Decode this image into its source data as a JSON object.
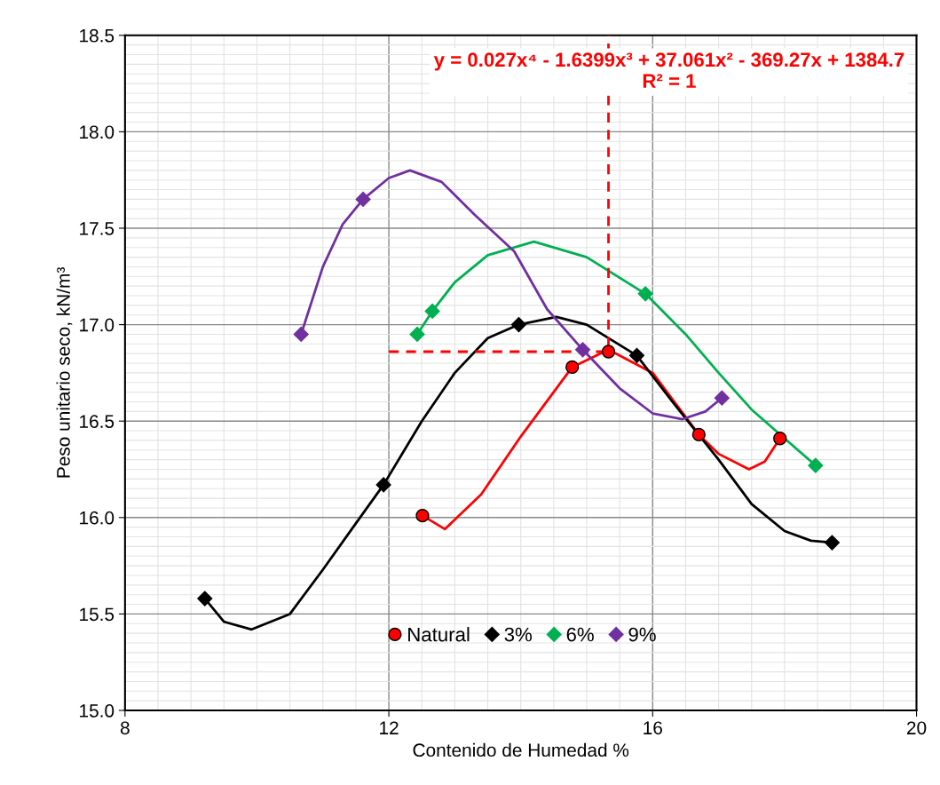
{
  "chart_data": {
    "type": "scatter",
    "xlabel": "Contenido de Humedad %",
    "ylabel": "Peso unitario seco, kN/m³",
    "xlim": [
      8,
      20
    ],
    "xticks": [
      8,
      12,
      16,
      20
    ],
    "ylim": [
      15.0,
      18.5
    ],
    "yticks": [
      {
        "value": 15.0,
        "label": "15.0"
      },
      {
        "value": 15.5,
        "label": "15.5"
      },
      {
        "value": 16.0,
        "label": "16.0"
      },
      {
        "value": 16.5,
        "label": "16.5"
      },
      {
        "value": 17.0,
        "label": "17.0"
      },
      {
        "value": 17.5,
        "label": "17.5"
      },
      {
        "value": 18.0,
        "label": "18.0"
      },
      {
        "value": 18.5,
        "label": "18.5"
      }
    ],
    "grid": true,
    "legend": "bottom",
    "annotations": [
      "y = 0.027x⁴ - 1.6399x³ + 37.061x² - 369.27x + 1384.7\nR² = 1"
    ],
    "series": [
      {
        "type": "line",
        "color": "#ff0000",
        "line_style": "solid",
        "marker": "none",
        "x": [
          12.51,
          12.85,
          13.4,
          14.0,
          14.78,
          15.33,
          16.0,
          16.7,
          17.0,
          17.46,
          17.7,
          17.93
        ],
        "values": [
          16.01,
          15.94,
          16.12,
          16.42,
          16.78,
          16.87,
          16.75,
          16.43,
          16.33,
          16.25,
          16.29,
          16.41
        ]
      },
      {
        "type": "line",
        "color": "#000000",
        "line_style": "solid",
        "marker": "none",
        "x": [
          9.21,
          9.5,
          9.92,
          10.5,
          11.0,
          11.5,
          11.92,
          12.5,
          13.0,
          13.5,
          13.97,
          14.54,
          15.0,
          15.76,
          16.3,
          17.0,
          17.5,
          18.0,
          18.4,
          18.72
        ],
        "values": [
          15.58,
          15.46,
          15.42,
          15.5,
          15.73,
          15.97,
          16.17,
          16.5,
          16.75,
          16.93,
          17.0,
          17.04,
          17.0,
          16.84,
          16.6,
          16.3,
          16.07,
          15.93,
          15.88,
          15.87
        ]
      },
      {
        "type": "line",
        "color": "#00b050",
        "line_style": "solid",
        "marker": "none",
        "x": [
          12.43,
          12.66,
          13.0,
          13.5,
          14.2,
          15.0,
          15.89,
          16.5,
          17.0,
          17.5,
          18.0,
          18.47
        ],
        "values": [
          16.95,
          17.07,
          17.22,
          17.36,
          17.43,
          17.35,
          17.16,
          16.95,
          16.75,
          16.56,
          16.41,
          16.27
        ]
      },
      {
        "type": "line",
        "color": "#7030a0",
        "line_style": "solid",
        "marker": "none",
        "x": [
          10.67,
          11.0,
          11.3,
          11.61,
          12.0,
          12.32,
          12.8,
          13.3,
          13.9,
          14.4,
          14.94,
          15.5,
          16.0,
          16.45,
          16.8,
          17.05
        ],
        "values": [
          16.95,
          17.3,
          17.52,
          17.65,
          17.76,
          17.8,
          17.74,
          17.57,
          17.38,
          17.08,
          16.87,
          16.67,
          16.54,
          16.51,
          16.55,
          16.62
        ]
      },
      {
        "type": "line",
        "color": "#ff0000",
        "line_style": "dashed",
        "marker": "none",
        "x": [
          12,
          15.33,
          15.33
        ],
        "values": [
          16.86,
          16.86,
          18.5
        ]
      },
      {
        "name": "Natural",
        "color": "#ff0000",
        "marker": "circle",
        "x": [
          12.51,
          14.78,
          15.33,
          16.7,
          17.93
        ],
        "values": [
          16.01,
          16.78,
          16.86,
          16.43,
          16.41
        ]
      },
      {
        "name": "3%",
        "color": "#000000",
        "marker": "diamond",
        "x": [
          9.21,
          11.92,
          13.97,
          15.76,
          18.72
        ],
        "values": [
          15.58,
          16.17,
          17.0,
          16.84,
          15.87
        ]
      },
      {
        "name": "6%",
        "color": "#00b050",
        "marker": "diamond",
        "x": [
          12.43,
          12.66,
          15.89,
          18.47
        ],
        "values": [
          16.95,
          17.07,
          17.16,
          16.27
        ]
      },
      {
        "name": "9%",
        "color": "#7030a0",
        "marker": "diamond",
        "x": [
          10.67,
          11.61,
          14.94,
          17.05
        ],
        "values": [
          16.95,
          17.65,
          16.87,
          16.62
        ]
      }
    ]
  }
}
